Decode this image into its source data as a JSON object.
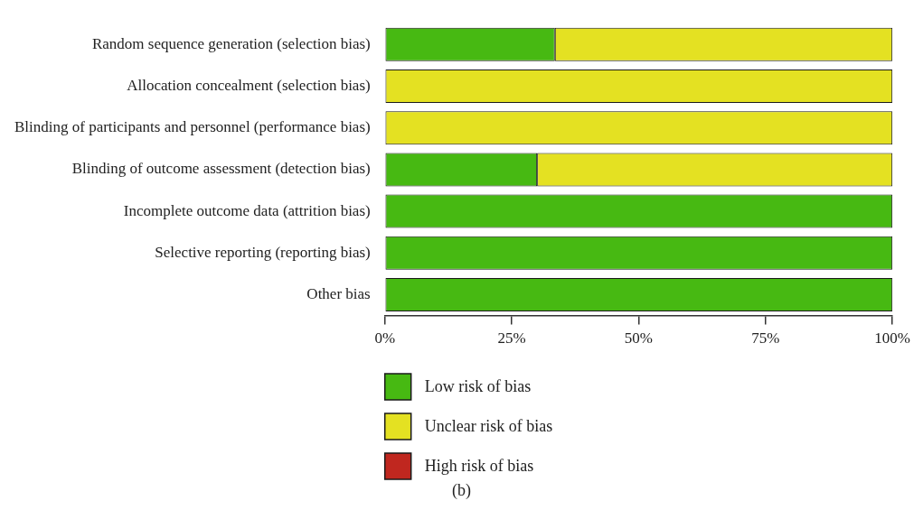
{
  "chart_data": {
    "type": "bar",
    "orientation": "horizontal",
    "stacked": true,
    "categories": [
      "Random sequence generation (selection bias)",
      "Allocation concealment (selection bias)",
      "Blinding of participants and personnel (performance bias)",
      "Blinding of outcome assessment (detection bias)",
      "Incomplete outcome data (attrition bias)",
      "Selective reporting (reporting bias)",
      "Other bias"
    ],
    "series": [
      {
        "name": "Low risk of bias",
        "color": "#47b912",
        "values": [
          33.5,
          0,
          0,
          30,
          100,
          100,
          100
        ]
      },
      {
        "name": "Unclear risk of bias",
        "color": "#e4e122",
        "values": [
          66.5,
          100,
          100,
          70,
          0,
          0,
          0
        ]
      },
      {
        "name": "High risk of bias",
        "color": "#c0271f",
        "values": [
          0,
          0,
          0,
          0,
          0,
          0,
          0
        ]
      }
    ],
    "xlim": [
      0,
      100
    ],
    "xticks": [
      {
        "value": 0,
        "label": "0%"
      },
      {
        "value": 25,
        "label": "25%"
      },
      {
        "value": 50,
        "label": "50%"
      },
      {
        "value": 75,
        "label": "75%"
      },
      {
        "value": 100,
        "label": "100%"
      }
    ],
    "grid": false,
    "legend": "bottom",
    "annotations": [
      "(b)"
    ]
  }
}
